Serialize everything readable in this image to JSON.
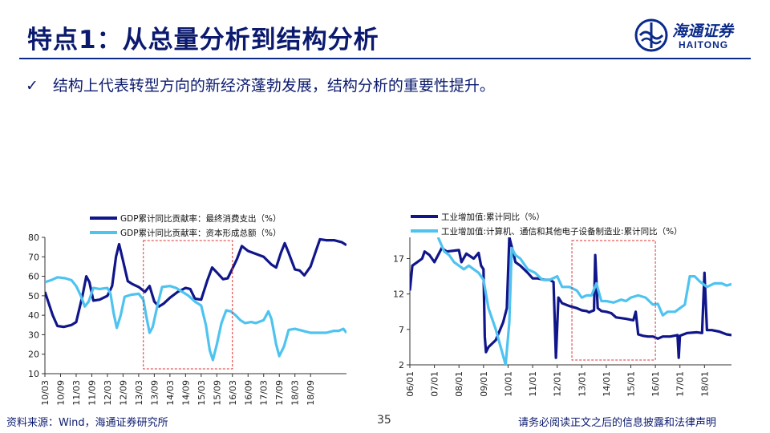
{
  "header": {
    "title": "特点1：从总量分析到结构分析",
    "logo_cn": "海通证券",
    "logo_en": "HAITONG"
  },
  "bullet": {
    "check": "✓",
    "text": "结构上代表转型方向的新经济蓬勃发展，结构分析的重要性提升。"
  },
  "footer": {
    "source": "资料来源：Wind，海通证券研究所",
    "page": "35",
    "disclaimer": "请务必阅读正文之后的信息披露和法律声明"
  },
  "colors": {
    "dark": "#10168a",
    "light": "#4fc3f0",
    "highlight": "#e03030",
    "brand": "#0b2a8a"
  },
  "chart_data": [
    {
      "type": "line",
      "x_ticks": [
        "10/03",
        "10/09",
        "11/03",
        "11/09",
        "12/03",
        "12/09",
        "13/03",
        "13/09",
        "14/03",
        "14/09",
        "15/03",
        "15/09",
        "16/03",
        "16/09",
        "17/03",
        "17/09",
        "18/03",
        "18/09"
      ],
      "ylim": [
        10,
        80
      ],
      "y_ticks": [
        10,
        20,
        30,
        40,
        50,
        60,
        70,
        80
      ],
      "legend_position": "top",
      "highlight_box": {
        "x_from": 6.3,
        "x_to": 12.0
      },
      "series": [
        {
          "name": "GDP累计同比贡献率：最终消费支出（%）",
          "color": "#10168a",
          "points": [
            [
              0,
              52
            ],
            [
              0.5,
              40
            ],
            [
              0.8,
              34.5
            ],
            [
              1.2,
              34
            ],
            [
              1.7,
              35
            ],
            [
              2,
              36.5
            ],
            [
              2.4,
              50
            ],
            [
              2.65,
              60
            ],
            [
              2.85,
              57
            ],
            [
              3.1,
              47.5
            ],
            [
              3.5,
              48
            ],
            [
              4,
              50
            ],
            [
              4.3,
              55
            ],
            [
              4.55,
              70
            ],
            [
              4.75,
              76.5
            ],
            [
              5,
              68
            ],
            [
              5.3,
              57.5
            ],
            [
              5.6,
              56
            ],
            [
              6,
              54.5
            ],
            [
              6.4,
              52
            ],
            [
              6.7,
              55
            ],
            [
              7,
              47
            ],
            [
              7.3,
              44.5
            ],
            [
              7.6,
              46
            ],
            [
              8,
              49
            ],
            [
              8.5,
              52
            ],
            [
              9,
              54
            ],
            [
              9.3,
              53.5
            ],
            [
              9.6,
              48.5
            ],
            [
              10,
              48
            ],
            [
              10.4,
              58
            ],
            [
              10.7,
              64.5
            ],
            [
              11,
              62
            ],
            [
              11.4,
              58.5
            ],
            [
              11.7,
              59
            ],
            [
              12,
              64
            ],
            [
              12.3,
              69
            ],
            [
              12.6,
              75.5
            ],
            [
              13,
              73
            ],
            [
              13.5,
              71.5
            ],
            [
              14,
              70
            ],
            [
              14.5,
              66
            ],
            [
              14.8,
              64.5
            ],
            [
              15.1,
              72
            ],
            [
              15.35,
              77
            ],
            [
              15.6,
              72
            ],
            [
              16,
              63.5
            ],
            [
              16.3,
              63
            ],
            [
              16.6,
              60.5
            ],
            [
              17,
              65
            ],
            [
              17.3,
              72
            ],
            [
              17.6,
              79
            ],
            [
              18,
              78.5
            ],
            [
              18.5,
              78.5
            ],
            [
              19,
              77.5
            ],
            [
              19.3,
              76
            ]
          ]
        },
        {
          "name": "GDP累计同比贡献率：资本形成总额（%）",
          "color": "#4fc3f0",
          "points": [
            [
              0,
              57
            ],
            [
              0.4,
              58
            ],
            [
              0.8,
              59.5
            ],
            [
              1.3,
              59
            ],
            [
              1.7,
              58
            ],
            [
              2,
              55
            ],
            [
              2.3,
              50
            ],
            [
              2.55,
              44.5
            ],
            [
              2.8,
              47
            ],
            [
              3.1,
              54
            ],
            [
              3.5,
              53.5
            ],
            [
              4,
              54
            ],
            [
              4.2,
              51
            ],
            [
              4.4,
              41
            ],
            [
              4.6,
              33.5
            ],
            [
              4.85,
              40
            ],
            [
              5.1,
              49.5
            ],
            [
              5.5,
              50.5
            ],
            [
              6,
              51
            ],
            [
              6.3,
              48
            ],
            [
              6.5,
              39
            ],
            [
              6.7,
              31
            ],
            [
              6.9,
              34
            ],
            [
              7.2,
              45
            ],
            [
              7.5,
              54.5
            ],
            [
              8,
              55
            ],
            [
              8.4,
              54
            ],
            [
              8.8,
              52
            ],
            [
              9.2,
              50
            ],
            [
              9.6,
              47
            ],
            [
              10,
              45
            ],
            [
              10.3,
              35
            ],
            [
              10.55,
              22
            ],
            [
              10.75,
              17
            ],
            [
              11,
              25
            ],
            [
              11.3,
              36
            ],
            [
              11.6,
              42.5
            ],
            [
              11.9,
              42
            ],
            [
              12.2,
              40
            ],
            [
              12.5,
              37.5
            ],
            [
              12.8,
              36
            ],
            [
              13.2,
              36.5
            ],
            [
              13.5,
              36
            ],
            [
              14,
              37.5
            ],
            [
              14.3,
              42
            ],
            [
              14.5,
              38
            ],
            [
              14.8,
              25
            ],
            [
              15,
              19
            ],
            [
              15.3,
              24
            ],
            [
              15.6,
              32.5
            ],
            [
              16,
              33
            ],
            [
              16.5,
              32
            ],
            [
              17,
              31
            ],
            [
              17.5,
              31
            ],
            [
              18,
              31
            ],
            [
              18.5,
              32
            ],
            [
              18.8,
              32
            ],
            [
              19.1,
              33
            ],
            [
              19.3,
              31
            ]
          ]
        }
      ]
    },
    {
      "type": "line",
      "x_ticks": [
        "06/01",
        "07/01",
        "08/01",
        "09/01",
        "10/01",
        "11/01",
        "12/01",
        "13/01",
        "14/01",
        "15/01",
        "16/01",
        "17/01",
        "18/01"
      ],
      "ylim": [
        2,
        20
      ],
      "y_ticks": [
        2,
        7,
        12,
        17
      ],
      "legend_position": "top",
      "highlight_box": {
        "x_from": 6.6,
        "x_to": 10.0
      },
      "series": [
        {
          "name": "工业增加值:累计同比（%）",
          "color": "#10168a",
          "points": [
            [
              0,
              12.5
            ],
            [
              0.1,
              16
            ],
            [
              0.3,
              16.5
            ],
            [
              0.5,
              17
            ],
            [
              0.6,
              18
            ],
            [
              0.8,
              17.5
            ],
            [
              1,
              16.5
            ],
            [
              1.15,
              17.5
            ],
            [
              1.3,
              18.5
            ],
            [
              1.5,
              18
            ],
            [
              2,
              18.2
            ],
            [
              2.1,
              16.5
            ],
            [
              2.3,
              17.7
            ],
            [
              2.6,
              17
            ],
            [
              2.8,
              17.8
            ],
            [
              2.9,
              16
            ],
            [
              3,
              15.5
            ],
            [
              3.05,
              6
            ],
            [
              3.1,
              3.8
            ],
            [
              3.2,
              4.5
            ],
            [
              3.5,
              5.5
            ],
            [
              3.8,
              8
            ],
            [
              3.95,
              10
            ],
            [
              4.05,
              20
            ],
            [
              4.2,
              18
            ],
            [
              4.3,
              16.5
            ],
            [
              4.5,
              16
            ],
            [
              4.8,
              15
            ],
            [
              5,
              14.2
            ],
            [
              5.2,
              14.2
            ],
            [
              5.5,
              14
            ],
            [
              5.7,
              14
            ],
            [
              5.85,
              13.7
            ],
            [
              5.95,
              3
            ],
            [
              6.05,
              11.5
            ],
            [
              6.2,
              10.7
            ],
            [
              6.5,
              10.3
            ],
            [
              6.8,
              10
            ],
            [
              7,
              9.7
            ],
            [
              7.2,
              9.6
            ],
            [
              7.3,
              9.4
            ],
            [
              7.35,
              9.5
            ],
            [
              7.5,
              9.7
            ],
            [
              7.55,
              17.5
            ],
            [
              7.65,
              10
            ],
            [
              7.8,
              9.6
            ],
            [
              8,
              9.5
            ],
            [
              8.2,
              9.3
            ],
            [
              8.4,
              8.7
            ],
            [
              8.6,
              8.6
            ],
            [
              8.8,
              8.5
            ],
            [
              9.1,
              8.3
            ],
            [
              9.2,
              9.5
            ],
            [
              9.3,
              6.3
            ],
            [
              9.5,
              6.1
            ],
            [
              9.7,
              6
            ],
            [
              9.9,
              6
            ],
            [
              10.1,
              5.7
            ],
            [
              10.3,
              6
            ],
            [
              10.6,
              6
            ],
            [
              10.9,
              6.2
            ],
            [
              10.95,
              3
            ],
            [
              11.0,
              6.1
            ],
            [
              11.3,
              6.5
            ],
            [
              11.7,
              6.6
            ],
            [
              11.9,
              6.5
            ],
            [
              12,
              15
            ],
            [
              12.1,
              6.9
            ],
            [
              12.3,
              6.9
            ],
            [
              12.6,
              6.7
            ],
            [
              12.9,
              6.3
            ],
            [
              13.1,
              6.2
            ]
          ]
        },
        {
          "name": "工业增加值:计算机、通信和其他电子设备制造业:累计同比（%）",
          "color": "#4fc3f0",
          "points": [
            [
              1.15,
              20
            ],
            [
              1.4,
              18
            ],
            [
              1.6,
              17.5
            ],
            [
              1.8,
              16.5
            ],
            [
              2,
              16
            ],
            [
              2.2,
              15.5
            ],
            [
              2.4,
              16
            ],
            [
              2.6,
              15.5
            ],
            [
              2.8,
              15
            ],
            [
              3.0,
              14
            ],
            [
              3.1,
              12
            ],
            [
              3.2,
              10
            ],
            [
              3.5,
              7
            ],
            [
              3.9,
              2
            ],
            [
              4.05,
              8
            ],
            [
              4.15,
              18.5
            ],
            [
              4.3,
              17.5
            ],
            [
              4.5,
              17
            ],
            [
              4.8,
              15.5
            ],
            [
              5.1,
              15
            ],
            [
              5.4,
              14
            ],
            [
              5.7,
              14
            ],
            [
              6,
              14.5
            ],
            [
              6.2,
              13
            ],
            [
              6.5,
              13
            ],
            [
              6.8,
              12.5
            ],
            [
              7,
              11.5
            ],
            [
              7.2,
              11.8
            ],
            [
              7.4,
              11.8
            ],
            [
              7.6,
              13.5
            ],
            [
              7.8,
              11
            ],
            [
              8,
              11
            ],
            [
              8.3,
              10.8
            ],
            [
              8.6,
              11.2
            ],
            [
              8.8,
              11
            ],
            [
              9,
              11.5
            ],
            [
              9.3,
              11.8
            ],
            [
              9.6,
              11.5
            ],
            [
              9.9,
              10.5
            ],
            [
              10.1,
              10.6
            ],
            [
              10.3,
              9
            ],
            [
              10.5,
              9.5
            ],
            [
              10.8,
              9.5
            ],
            [
              11,
              10
            ],
            [
              11.2,
              10.5
            ],
            [
              11.4,
              14.5
            ],
            [
              11.6,
              14.5
            ],
            [
              11.8,
              13.8
            ],
            [
              12.1,
              13
            ],
            [
              12.4,
              13.5
            ],
            [
              12.7,
              13.5
            ],
            [
              12.9,
              13.2
            ],
            [
              13.1,
              13.4
            ]
          ]
        }
      ]
    }
  ]
}
